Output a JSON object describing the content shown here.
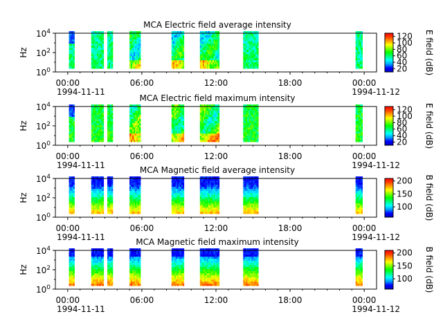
{
  "figure": {
    "colormap": [
      "#0000c0",
      "#0000ff",
      "#00a0ff",
      "#00ffff",
      "#00ff80",
      "#00ff00",
      "#80ff00",
      "#ffff00",
      "#ffa000",
      "#ff4000",
      "#ff0000"
    ]
  },
  "chart_data": [
    {
      "type": "heatmap",
      "title": "MCA  Electric field average intensity",
      "ylabel": "Hz",
      "colorbar_label": "E field (dB)",
      "colorbar_ticks": [
        "120",
        "100",
        "80",
        "60",
        "40",
        "20"
      ],
      "colorbar_range": [
        10,
        130
      ],
      "yscale": "log",
      "ylim": [
        1,
        10000
      ],
      "ytick_base": [
        "10",
        "10",
        "10"
      ],
      "ytick_exp": [
        "0",
        "2",
        "4"
      ],
      "xtick_labels": [
        "00:00",
        "06:00",
        "12:00",
        "18:00",
        "00:00"
      ],
      "date_left": "1994-11-11",
      "date_right": "1994-11-12",
      "xlim_hours": [
        -1,
        25
      ],
      "data_intervals_hours": [
        {
          "start": 0.1,
          "end": 0.45
        },
        {
          "start": 1.9,
          "end": 2.8
        },
        {
          "start": 3.2,
          "end": 3.55
        },
        {
          "start": 5.0,
          "end": 5.8
        },
        {
          "start": 8.4,
          "end": 9.3
        },
        {
          "start": 10.7,
          "end": 12.2
        },
        {
          "start": 14.2,
          "end": 15.4
        },
        {
          "start": 23.3,
          "end": 23.8
        }
      ]
    },
    {
      "type": "heatmap",
      "title": "MCA  Electric field maximum intensity",
      "ylabel": "Hz",
      "colorbar_label": "E field (dB)",
      "colorbar_ticks": [
        "120",
        "100",
        "80",
        "60",
        "40",
        "20"
      ],
      "colorbar_range": [
        10,
        130
      ],
      "yscale": "log",
      "ylim": [
        1,
        10000
      ],
      "ytick_base": [
        "10",
        "10",
        "10"
      ],
      "ytick_exp": [
        "0",
        "2",
        "4"
      ],
      "xtick_labels": [
        "00:00",
        "06:00",
        "12:00",
        "18:00",
        "00:00"
      ],
      "date_left": "1994-11-11",
      "date_right": "1994-11-12",
      "xlim_hours": [
        -1,
        25
      ],
      "data_intervals_hours": [
        {
          "start": 0.1,
          "end": 0.45
        },
        {
          "start": 1.9,
          "end": 2.8
        },
        {
          "start": 3.2,
          "end": 3.55
        },
        {
          "start": 5.0,
          "end": 5.8
        },
        {
          "start": 8.4,
          "end": 9.3
        },
        {
          "start": 10.7,
          "end": 12.2
        },
        {
          "start": 14.2,
          "end": 15.4
        },
        {
          "start": 23.3,
          "end": 23.8
        }
      ]
    },
    {
      "type": "heatmap",
      "title": "MCA  Magnetic field average intensity",
      "ylabel": "Hz",
      "colorbar_label": "B field (dB)",
      "colorbar_ticks": [
        "200",
        "150",
        "100"
      ],
      "colorbar_range": [
        60,
        210
      ],
      "yscale": "log",
      "ylim": [
        1,
        10000
      ],
      "ytick_base": [
        "10",
        "10",
        "10"
      ],
      "ytick_exp": [
        "0",
        "2",
        "4"
      ],
      "xtick_labels": [
        "00:00",
        "06:00",
        "12:00",
        "18:00",
        "00:00"
      ],
      "date_left": "1994-11-11",
      "date_right": "1994-11-12",
      "xlim_hours": [
        -1,
        25
      ],
      "data_intervals_hours": [
        {
          "start": 0.1,
          "end": 0.45
        },
        {
          "start": 1.9,
          "end": 2.8
        },
        {
          "start": 3.2,
          "end": 3.55
        },
        {
          "start": 5.0,
          "end": 5.8
        },
        {
          "start": 8.4,
          "end": 9.3
        },
        {
          "start": 10.7,
          "end": 12.2
        },
        {
          "start": 14.2,
          "end": 15.4
        },
        {
          "start": 23.3,
          "end": 23.8
        }
      ]
    },
    {
      "type": "heatmap",
      "title": "MCA  Magnetic field maximum intensity",
      "ylabel": "Hz",
      "colorbar_label": "B field (dB)",
      "colorbar_ticks": [
        "200",
        "150",
        "100"
      ],
      "colorbar_range": [
        60,
        210
      ],
      "yscale": "log",
      "ylim": [
        1,
        10000
      ],
      "ytick_base": [
        "10",
        "10",
        "10"
      ],
      "ytick_exp": [
        "0",
        "2",
        "4"
      ],
      "xtick_labels": [
        "00:00",
        "06:00",
        "12:00",
        "18:00",
        "00:00"
      ],
      "date_left": "1994-11-11",
      "date_right": "1994-11-12",
      "xlim_hours": [
        -1,
        25
      ],
      "data_intervals_hours": [
        {
          "start": 0.1,
          "end": 0.45
        },
        {
          "start": 1.9,
          "end": 2.8
        },
        {
          "start": 3.2,
          "end": 3.55
        },
        {
          "start": 5.0,
          "end": 5.8
        },
        {
          "start": 8.4,
          "end": 9.3
        },
        {
          "start": 10.7,
          "end": 12.2
        },
        {
          "start": 14.2,
          "end": 15.4
        },
        {
          "start": 23.3,
          "end": 23.8
        }
      ]
    }
  ]
}
